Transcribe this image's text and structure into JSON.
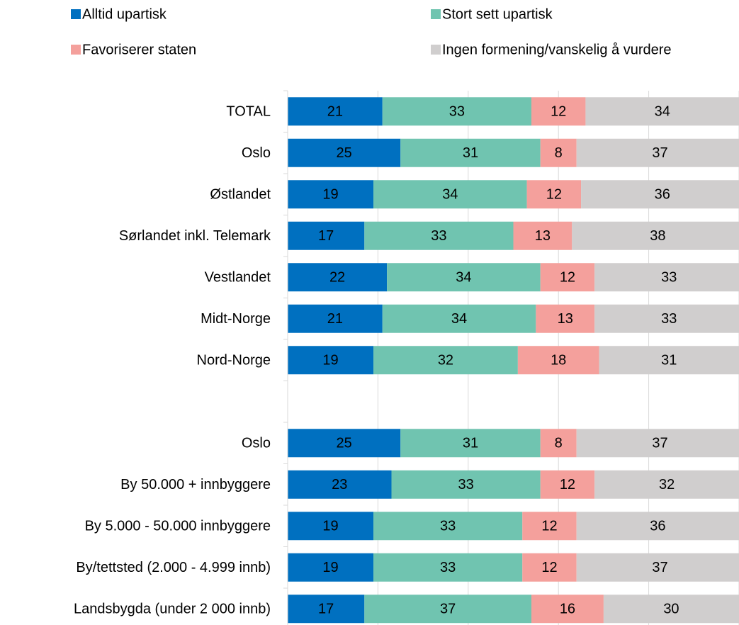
{
  "chart_data": {
    "type": "stacked_bar_horizontal",
    "categories": [
      "TOTAL",
      "Oslo",
      "Østlandet",
      "Sørlandet inkl. Telemark",
      "Vestlandet",
      "Midt-Norge",
      "Nord-Norge",
      null,
      "Oslo",
      "By 50.000 + innbyggere",
      "By 5.000 - 50.000 innbyggere",
      "By/tettsted (2.000 - 4.999 innb)",
      "Landsbygda (under 2 000 innb)"
    ],
    "series": [
      {
        "name": "Alltid upartisk",
        "color": "#0070c0",
        "values": [
          21,
          25,
          19,
          17,
          22,
          21,
          19,
          null,
          25,
          23,
          19,
          19,
          17
        ]
      },
      {
        "name": "Stort sett upartisk",
        "color": "#70c4b0",
        "values": [
          33,
          31,
          34,
          33,
          34,
          34,
          32,
          null,
          31,
          33,
          33,
          33,
          37
        ]
      },
      {
        "name": "Favoriserer staten",
        "color": "#f4a09c",
        "values": [
          12,
          8,
          12,
          13,
          12,
          13,
          18,
          null,
          8,
          12,
          12,
          12,
          16
        ]
      },
      {
        "name": "Ingen formening/vanskelig å vurdere",
        "color": "#d0cece",
        "values": [
          34,
          37,
          36,
          38,
          33,
          33,
          31,
          null,
          37,
          32,
          36,
          37,
          30
        ]
      }
    ],
    "xlim": [
      0,
      100
    ],
    "xticks": [
      0,
      20,
      40,
      60,
      80,
      100
    ],
    "grid": true
  }
}
